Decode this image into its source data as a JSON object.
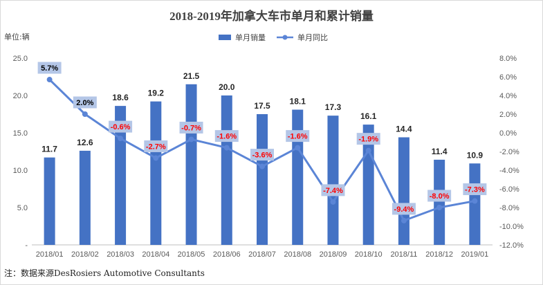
{
  "title": "2018-2019年加拿大车市单月和累计销量",
  "unit_label": "单位:辆",
  "note": "注：数据来源DesRosiers Automotive Consultants",
  "legend": {
    "bar_label": "单月销量",
    "line_label": "单月同比"
  },
  "colors": {
    "bar": "#4472c4",
    "line": "#5b85d6",
    "label_box": "#b4c6e7",
    "negative_text": "#ff0000",
    "positive_text": "#000000"
  },
  "chart_data": {
    "type": "bar",
    "categories": [
      "2018/01",
      "2018/02",
      "2018/03",
      "2018/04",
      "2018/05",
      "2018/06",
      "2018/07",
      "2018/08",
      "2018/09",
      "2018/10",
      "2018/11",
      "2018/12",
      "2019/01"
    ],
    "series": [
      {
        "name": "单月销量",
        "type": "bar",
        "axis": "left",
        "values": [
          11.7,
          12.6,
          18.6,
          19.2,
          21.5,
          20.0,
          17.5,
          18.1,
          17.3,
          16.1,
          14.4,
          11.4,
          10.9
        ],
        "labels": [
          "11.7",
          "12.6",
          "18.6",
          "19.2",
          "21.5",
          "20.0",
          "17.5",
          "18.1",
          "17.3",
          "16.1",
          "14.4",
          "11.4",
          "10.9"
        ]
      },
      {
        "name": "单月同比",
        "type": "line",
        "axis": "right",
        "values": [
          5.7,
          2.0,
          -0.6,
          -2.7,
          -0.7,
          -1.6,
          -3.6,
          -1.6,
          -7.4,
          -1.9,
          -9.4,
          -8.0,
          -7.3
        ],
        "labels": [
          "5.7%",
          "2.0%",
          "-0.6%",
          "-2.7%",
          "-0.7%",
          "-1.6%",
          "-3.6%",
          "-1.6%",
          "-7.4%",
          "-1.9%",
          "-9.4%",
          "-8.0%",
          "-7.3%"
        ]
      }
    ],
    "y_left": {
      "ylim": [
        0,
        25
      ],
      "ticks": [
        "-",
        "5.0",
        "10.0",
        "15.0",
        "20.0",
        "25.0"
      ],
      "tick_values": [
        0,
        5,
        10,
        15,
        20,
        25
      ]
    },
    "y_right": {
      "ylim": [
        -12,
        8
      ],
      "ticks": [
        "8.0%",
        "6.0%",
        "4.0%",
        "2.0%",
        "0.0%",
        "-2.0%",
        "-4.0%",
        "-6.0%",
        "-8.0%",
        "-10.0%",
        "-12.0%"
      ],
      "tick_values": [
        8,
        6,
        4,
        2,
        0,
        -2,
        -4,
        -6,
        -8,
        -10,
        -12
      ]
    },
    "grid": false,
    "legend_position": "top-center"
  }
}
